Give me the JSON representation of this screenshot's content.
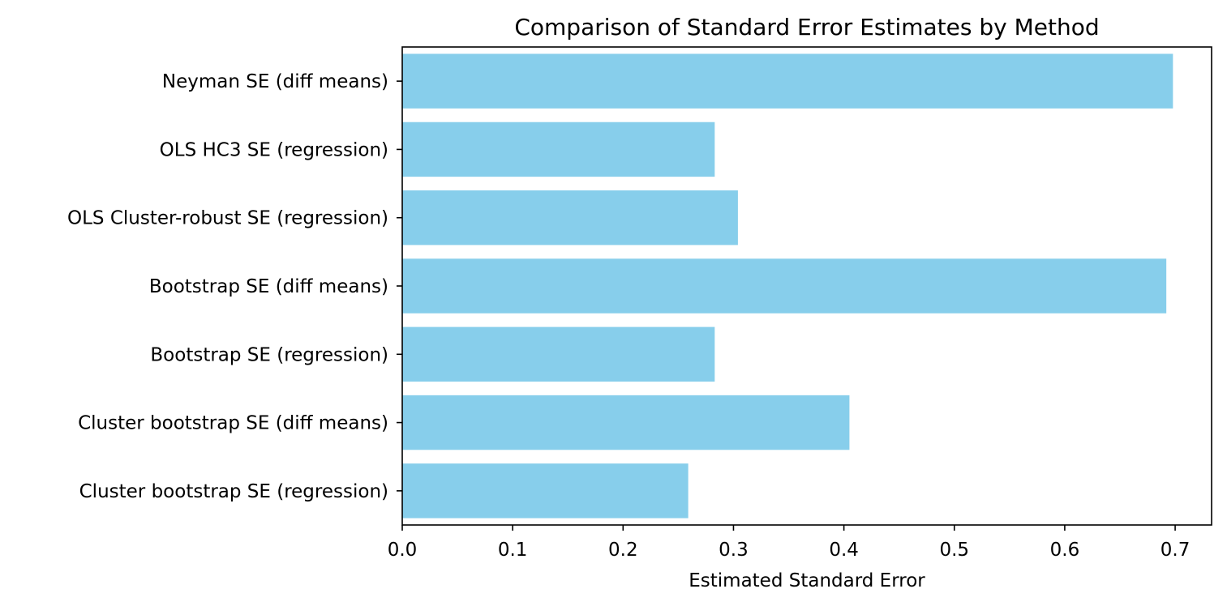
{
  "chart_data": {
    "type": "bar",
    "orientation": "horizontal",
    "title": "Comparison of Standard Error Estimates by Method",
    "xlabel": "Estimated Standard Error",
    "ylabel": "",
    "categories": [
      "Neyman SE (diff means)",
      "OLS HC3 SE (regression)",
      "OLS Cluster-robust SE (regression)",
      "Bootstrap SE (diff means)",
      "Bootstrap SE (regression)",
      "Cluster bootstrap SE (diff means)",
      "Cluster bootstrap SE (regression)"
    ],
    "values": [
      0.698,
      0.283,
      0.304,
      0.692,
      0.283,
      0.405,
      0.259
    ],
    "xlim": [
      0,
      0.733
    ],
    "xticks": [
      "0.0",
      "0.1",
      "0.2",
      "0.3",
      "0.4",
      "0.5",
      "0.6",
      "0.7"
    ],
    "grid": false,
    "bar_color": "#87ceeb"
  }
}
